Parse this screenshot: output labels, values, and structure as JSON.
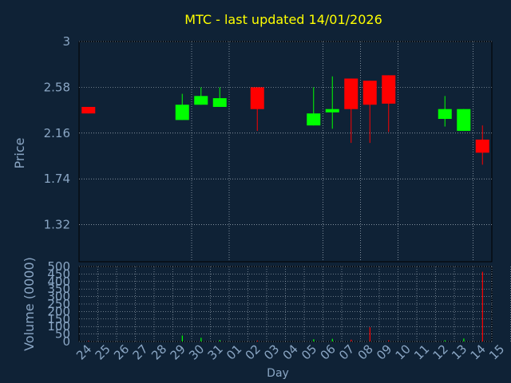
{
  "colors": {
    "background": "#0f2236",
    "title": "#ffff00",
    "axis_text": "#8aa6c4",
    "gridline": "#c8d2dc",
    "up": "#00ff00",
    "down": "#ff0000",
    "frame": "#000000"
  },
  "chart_data": [
    {
      "type": "candlestick",
      "title": "MTC - last updated 14/01/2026",
      "xlabel": "Day",
      "ylabel": "Price",
      "ylim": [
        0.98,
        3.0
      ],
      "yticks": [
        "3",
        "2.58",
        "2.16",
        "1.74",
        "1.32"
      ],
      "ytick_values": [
        3.0,
        2.58,
        2.16,
        1.74,
        1.32
      ],
      "grid": true,
      "categories": [
        "24",
        "25",
        "26",
        "27",
        "28",
        "29",
        "30",
        "31",
        "01",
        "02",
        "03",
        "04",
        "05",
        "06",
        "07",
        "08",
        "09",
        "10",
        "11",
        "12",
        "13",
        "14",
        "15"
      ],
      "candles": [
        {
          "day": "24",
          "open": 2.4,
          "high": 2.4,
          "low": 2.34,
          "close": 2.34
        },
        {
          "day": "29",
          "open": 2.28,
          "high": 2.52,
          "low": 2.28,
          "close": 2.42
        },
        {
          "day": "30",
          "open": 2.42,
          "high": 2.58,
          "low": 2.42,
          "close": 2.5
        },
        {
          "day": "31",
          "open": 2.4,
          "high": 2.58,
          "low": 2.4,
          "close": 2.48
        },
        {
          "day": "02",
          "open": 2.58,
          "high": 2.58,
          "low": 2.18,
          "close": 2.38
        },
        {
          "day": "05",
          "open": 2.23,
          "high": 2.58,
          "low": 2.23,
          "close": 2.34
        },
        {
          "day": "06",
          "open": 2.35,
          "high": 2.68,
          "low": 2.2,
          "close": 2.38
        },
        {
          "day": "07",
          "open": 2.66,
          "high": 2.66,
          "low": 2.07,
          "close": 2.38
        },
        {
          "day": "08",
          "open": 2.64,
          "high": 2.64,
          "low": 2.07,
          "close": 2.42
        },
        {
          "day": "09",
          "open": 2.69,
          "high": 2.69,
          "low": 2.17,
          "close": 2.43
        },
        {
          "day": "12",
          "open": 2.29,
          "high": 2.5,
          "low": 2.22,
          "close": 2.38
        },
        {
          "day": "13",
          "open": 2.18,
          "high": 2.38,
          "low": 2.18,
          "close": 2.38
        },
        {
          "day": "14",
          "open": 2.1,
          "high": 2.23,
          "low": 1.87,
          "close": 1.98
        }
      ]
    },
    {
      "type": "bar",
      "ylabel": "Volume (0000)",
      "ylim": [
        0,
        500
      ],
      "yticks": [
        "500",
        "450",
        "400",
        "350",
        "300",
        "250",
        "200",
        "150",
        "100",
        "50",
        "0"
      ],
      "ytick_values": [
        500,
        450,
        400,
        350,
        300,
        250,
        200,
        150,
        100,
        50,
        0
      ],
      "grid": true,
      "categories": [
        "24",
        "25",
        "26",
        "27",
        "28",
        "29",
        "30",
        "31",
        "01",
        "02",
        "03",
        "04",
        "05",
        "06",
        "07",
        "08",
        "09",
        "10",
        "11",
        "12",
        "13",
        "14",
        "15"
      ],
      "bars": [
        {
          "day": "24",
          "value": 4,
          "direction": "down"
        },
        {
          "day": "29",
          "value": 40,
          "direction": "up"
        },
        {
          "day": "30",
          "value": 25,
          "direction": "up"
        },
        {
          "day": "31",
          "value": 10,
          "direction": "up"
        },
        {
          "day": "02",
          "value": 6,
          "direction": "down"
        },
        {
          "day": "05",
          "value": 15,
          "direction": "up"
        },
        {
          "day": "06",
          "value": 18,
          "direction": "up"
        },
        {
          "day": "07",
          "value": 12,
          "direction": "down"
        },
        {
          "day": "08",
          "value": 95,
          "direction": "down"
        },
        {
          "day": "09",
          "value": 8,
          "direction": "down"
        },
        {
          "day": "12",
          "value": 8,
          "direction": "up"
        },
        {
          "day": "13",
          "value": 20,
          "direction": "up"
        },
        {
          "day": "14",
          "value": 465,
          "direction": "down"
        }
      ]
    }
  ]
}
